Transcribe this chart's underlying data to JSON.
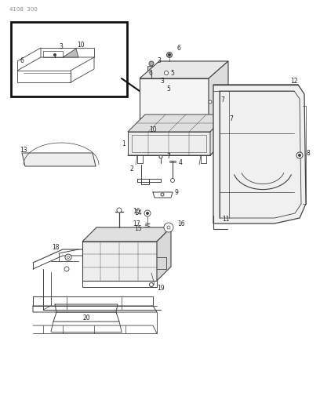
{
  "title": "4108  300",
  "bg": "#ffffff",
  "lc": "#404040",
  "tc": "#222222",
  "fig_w": 4.08,
  "fig_h": 5.33,
  "dpi": 100
}
